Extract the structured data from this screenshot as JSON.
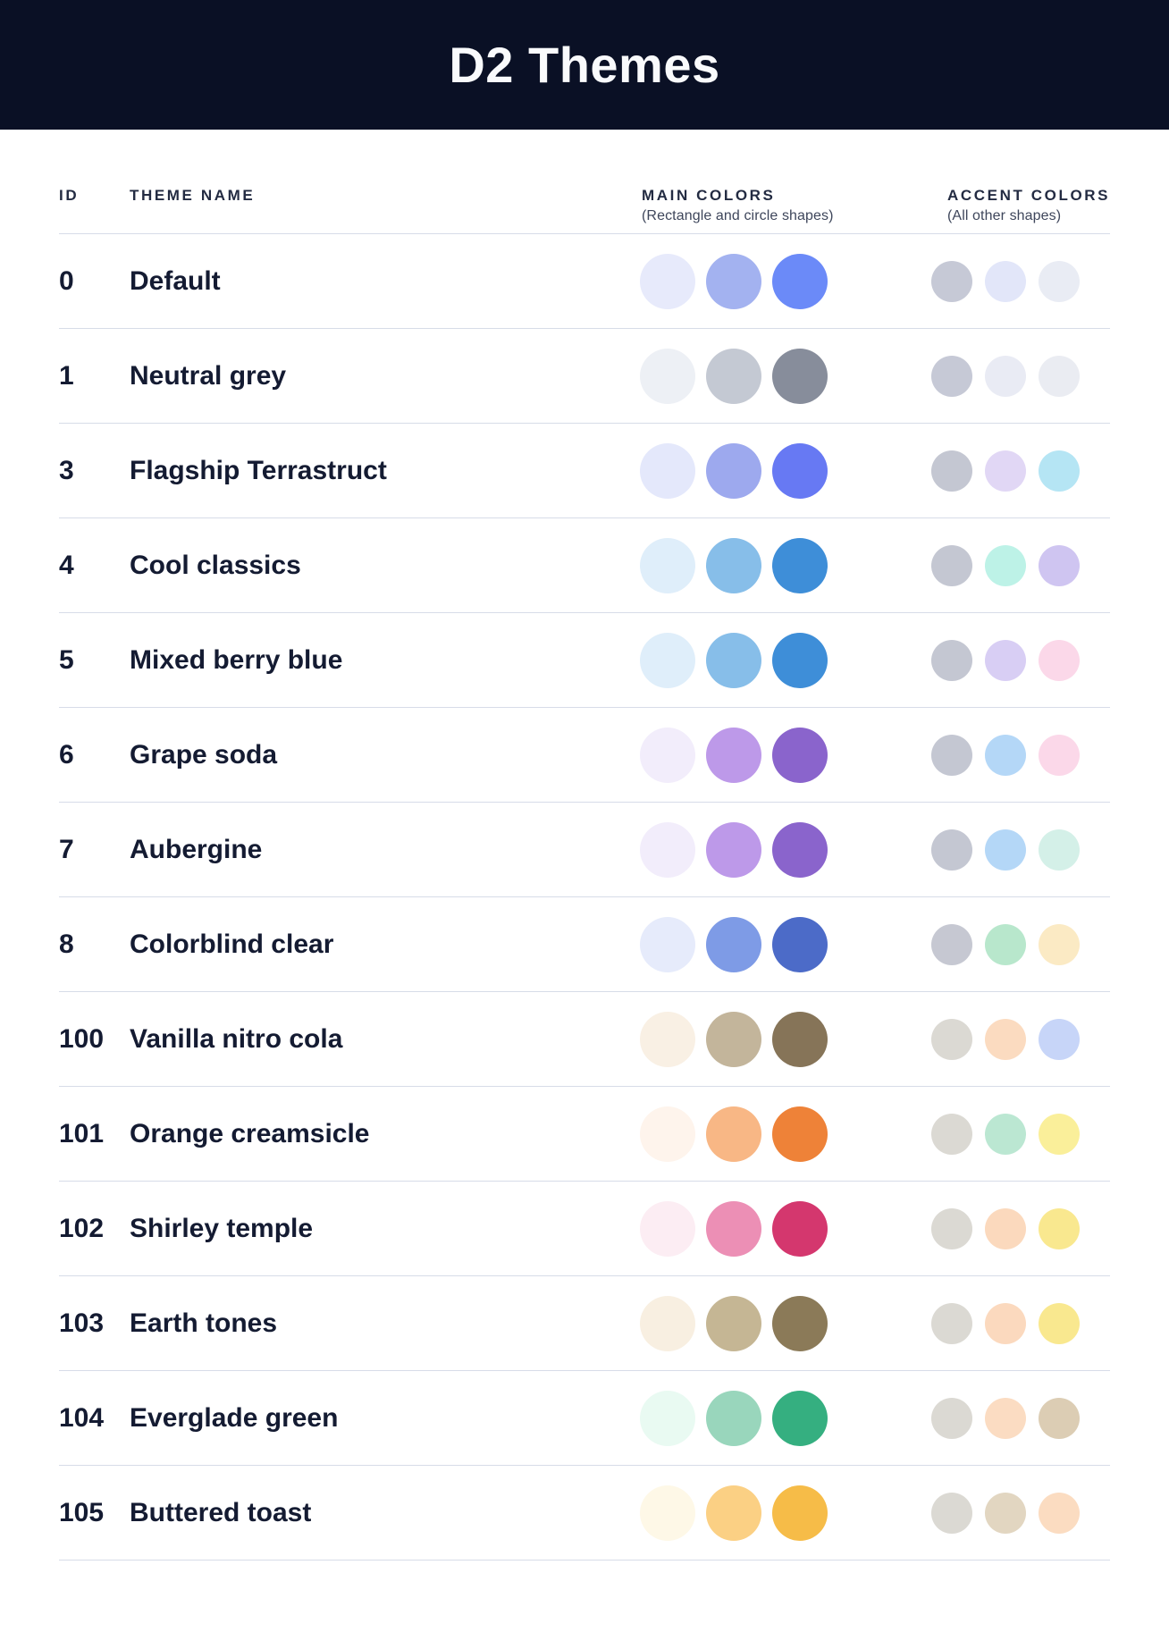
{
  "header": {
    "title": "D2 Themes"
  },
  "table": {
    "columns": {
      "id_label": "ID",
      "name_label": "THEME NAME",
      "main_label": "MAIN COLORS",
      "main_sublabel": "(Rectangle and circle shapes)",
      "accent_label": "ACCENT COLORS",
      "accent_sublabel": "(All other shapes)"
    },
    "rows": [
      {
        "id": "0",
        "name": "Default",
        "main": [
          "#E7EAFB",
          "#A3B2F0",
          "#6B8AF8"
        ],
        "accent": [
          "#C6C9D6",
          "#E2E6F9",
          "#E9ECF4"
        ]
      },
      {
        "id": "1",
        "name": "Neutral grey",
        "main": [
          "#EDF0F5",
          "#C4C9D3",
          "#878D9B"
        ],
        "accent": [
          "#C6C9D6",
          "#E9EBF4",
          "#EAECF2"
        ]
      },
      {
        "id": "3",
        "name": "Flagship Terrastruct",
        "main": [
          "#E4E8FB",
          "#9DA9EE",
          "#6779F3"
        ],
        "accent": [
          "#C4C7D2",
          "#E1D7F5",
          "#B5E5F4"
        ]
      },
      {
        "id": "4",
        "name": "Cool classics",
        "main": [
          "#DFEEFA",
          "#87BEE9",
          "#3E8ED8"
        ],
        "accent": [
          "#C4C7D2",
          "#BDF2E7",
          "#CFC5F1"
        ]
      },
      {
        "id": "5",
        "name": "Mixed berry blue",
        "main": [
          "#DFEEFA",
          "#87BEE9",
          "#3E8ED8"
        ],
        "accent": [
          "#C4C7D2",
          "#D8CEF4",
          "#FBD8E9"
        ]
      },
      {
        "id": "6",
        "name": "Grape soda",
        "main": [
          "#F2EDFB",
          "#BD99E9",
          "#8A64CC"
        ],
        "accent": [
          "#C4C7D2",
          "#B4D7F7",
          "#FBD8E9"
        ]
      },
      {
        "id": "7",
        "name": "Aubergine",
        "main": [
          "#F2EDFB",
          "#BD99E9",
          "#8A64CC"
        ],
        "accent": [
          "#C4C7D2",
          "#B4D7F7",
          "#D4F0E8"
        ]
      },
      {
        "id": "8",
        "name": "Colorblind clear",
        "main": [
          "#E6EBFB",
          "#7E9BE6",
          "#4C6BC8"
        ],
        "accent": [
          "#C6C8D2",
          "#B8E7CC",
          "#FBEAC4"
        ]
      },
      {
        "id": "100",
        "name": "Vanilla nitro cola",
        "main": [
          "#F9F0E4",
          "#C3B59B",
          "#867458"
        ],
        "accent": [
          "#DBD9D3",
          "#FBDBC0",
          "#C7D5F8"
        ]
      },
      {
        "id": "101",
        "name": "Orange creamsicle",
        "main": [
          "#FEF4EC",
          "#F8B785",
          "#EE8238"
        ],
        "accent": [
          "#DBD9D3",
          "#BBE7D2",
          "#FAEF9A"
        ]
      },
      {
        "id": "102",
        "name": "Shirley temple",
        "main": [
          "#FCEDF3",
          "#EC8FB5",
          "#D4376E"
        ],
        "accent": [
          "#DBD9D3",
          "#FBD9BD",
          "#F9E88F"
        ]
      },
      {
        "id": "103",
        "name": "Earth tones",
        "main": [
          "#F8EFE1",
          "#C5B694",
          "#8B7A58"
        ],
        "accent": [
          "#DBD9D3",
          "#FBD9BE",
          "#F9E88F"
        ]
      },
      {
        "id": "104",
        "name": "Everglade green",
        "main": [
          "#E9FAF2",
          "#99D6BC",
          "#35AF80"
        ],
        "accent": [
          "#DBD9D3",
          "#FBDCC2",
          "#DCCDB4"
        ]
      },
      {
        "id": "105",
        "name": "Buttered toast",
        "main": [
          "#FEF8E7",
          "#FBD084",
          "#F6BC48"
        ],
        "accent": [
          "#DBD9D3",
          "#E2D6C1",
          "#FBDCC1"
        ]
      }
    ]
  },
  "colors": {
    "title_band_bg": "#0A1025",
    "title_text": "#F9FAFC",
    "column_header_text": "#232B42",
    "row_text": "#141B32",
    "divider": "#D7DCE8",
    "page_bg": "#FFFFFF"
  }
}
